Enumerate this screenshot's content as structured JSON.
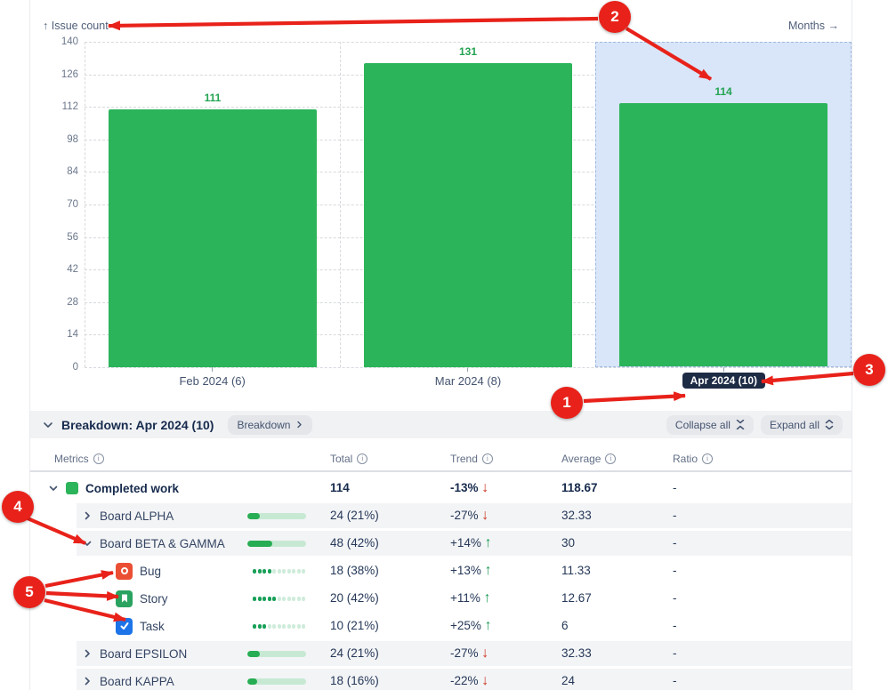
{
  "colors": {
    "bar_green": "#2cb45a",
    "trend_up": "#1f9d58",
    "trend_down": "#ca3521",
    "annotation_red": "#e8221a",
    "selected_month_bg": "#d9e6f9",
    "selected_month_border": "#9fb8de",
    "selected_label_bg": "#1e2b45",
    "dot_empty": "#cfecdb"
  },
  "icons": {
    "up_arrow": "↑",
    "right_arrow": "→",
    "trend_up_arrow": "↑",
    "trend_down_arrow": "↓",
    "info": "i"
  },
  "chart": {
    "y_axis_label": "Issue count",
    "x_axis_label": "Months"
  },
  "chart_data": {
    "type": "bar",
    "categories": [
      "Feb 2024 (6)",
      "Mar 2024 (8)",
      "Apr 2024 (10)"
    ],
    "values": [
      111,
      131,
      114
    ],
    "title": "",
    "xlabel": "Months",
    "ylabel": "Issue count",
    "ylim": [
      0,
      140
    ],
    "yticks": [
      0,
      14,
      28,
      42,
      56,
      70,
      84,
      98,
      112,
      126,
      140
    ],
    "grid": true,
    "legend": false,
    "selected_category": "Apr 2024 (10)",
    "bar_labels": [
      "111",
      "131",
      "114"
    ]
  },
  "breakdown": {
    "title": "Breakdown: Apr 2024 (10)",
    "breakdown_button_label": "Breakdown",
    "collapse_all_label": "Collapse all",
    "expand_all_label": "Expand all",
    "columns": [
      {
        "label": "Metrics"
      },
      {
        "label": "Total"
      },
      {
        "label": "Trend"
      },
      {
        "label": "Average"
      },
      {
        "label": "Ratio"
      }
    ],
    "rows": [
      {
        "level": 0,
        "name": "Completed work",
        "icon": "swatch",
        "chevron": "down",
        "total": "114",
        "trend": "-13%",
        "trend_dir": "down",
        "average": "118.67",
        "ratio": "-",
        "bold": true
      },
      {
        "level": 1,
        "name": "Board ALPHA",
        "chevron": "right",
        "bar_pct": 21,
        "total": "24 (21%)",
        "trend": "-27%",
        "trend_dir": "down",
        "average": "32.33",
        "ratio": "-"
      },
      {
        "level": 1,
        "name": "Board BETA & GAMMA",
        "chevron": "down",
        "bar_pct": 42,
        "total": "48 (42%)",
        "trend": "+14%",
        "trend_dir": "up",
        "average": "30",
        "ratio": "-"
      },
      {
        "level": 2,
        "name": "Bug",
        "icon": "bug",
        "dots_filled": 4,
        "dots_total": 11,
        "total": "18 (38%)",
        "trend": "+13%",
        "trend_dir": "up",
        "average": "11.33",
        "ratio": "-"
      },
      {
        "level": 2,
        "name": "Story",
        "icon": "story",
        "dots_filled": 5,
        "dots_total": 11,
        "total": "20 (42%)",
        "trend": "+11%",
        "trend_dir": "up",
        "average": "12.67",
        "ratio": "-"
      },
      {
        "level": 2,
        "name": "Task",
        "icon": "task",
        "dots_filled": 3,
        "dots_total": 11,
        "total": "10 (21%)",
        "trend": "+25%",
        "trend_dir": "up",
        "average": "6",
        "ratio": "-"
      },
      {
        "level": 1,
        "name": "Board EPSILON",
        "chevron": "right",
        "bar_pct": 21,
        "total": "24 (21%)",
        "trend": "-27%",
        "trend_dir": "down",
        "average": "32.33",
        "ratio": "-"
      },
      {
        "level": 1,
        "name": "Board KAPPA",
        "chevron": "right",
        "bar_pct": 16,
        "total": "18 (16%)",
        "trend": "-22%",
        "trend_dir": "down",
        "average": "24",
        "ratio": "-"
      }
    ]
  },
  "annotations": [
    {
      "label": "1"
    },
    {
      "label": "2"
    },
    {
      "label": "3"
    },
    {
      "label": "4"
    },
    {
      "label": "5"
    }
  ]
}
